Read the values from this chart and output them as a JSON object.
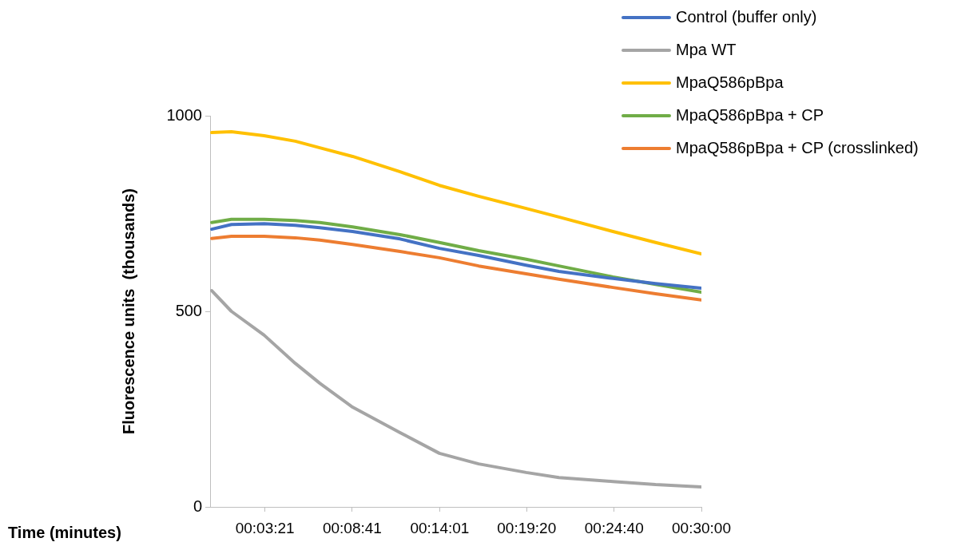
{
  "chart_data": {
    "type": "line",
    "xlabel": "Time (minutes)",
    "ylabel": "Fluorescence units  (thousands)",
    "x": [
      0.1,
      1.3,
      3.3,
      5.2,
      6.7,
      8.7,
      11.6,
      14.0,
      16.4,
      19.3,
      21.3,
      24.6,
      27.2,
      30
    ],
    "xlim": [
      0,
      30
    ],
    "xticks": [
      {
        "value": 3.35,
        "label": "00:03:21"
      },
      {
        "value": 8.68,
        "label": "00:08:41"
      },
      {
        "value": 14.02,
        "label": "00:14:01"
      },
      {
        "value": 19.33,
        "label": "00:19:20"
      },
      {
        "value": 24.67,
        "label": "00:24:40"
      },
      {
        "value": 30,
        "label": "00:30:00"
      }
    ],
    "ylim": [
      0,
      1000
    ],
    "yticks": [
      0,
      500,
      1000
    ],
    "grid": false,
    "legend": "top right",
    "marker": "none",
    "line_style": "solid",
    "series": [
      {
        "name": "Control (buffer only)",
        "color": "#4472c4",
        "values": [
          710,
          722,
          724,
          720,
          714,
          704,
          685,
          661,
          643,
          618,
          602,
          584,
          571,
          559
        ]
      },
      {
        "name": "Mpa WT",
        "color": "#a5a5a5",
        "values": [
          553,
          500,
          439,
          367,
          316,
          255,
          190,
          137,
          110,
          88,
          75,
          65,
          57,
          51
        ]
      },
      {
        "name": "MpaQ586pBpa",
        "color": "#ffc000",
        "values": [
          957,
          959,
          949,
          935,
          918,
          896,
          857,
          822,
          794,
          763,
          741,
          704,
          676,
          647
        ]
      },
      {
        "name": "MpaQ586pBpa + CP",
        "color": "#70ad47",
        "values": [
          727,
          735,
          735,
          732,
          727,
          716,
          696,
          676,
          655,
          633,
          616,
          588,
          569,
          549
        ]
      },
      {
        "name": "MpaQ586pBpa + CP (crosslinked)",
        "color": "#ed7d31",
        "values": [
          686,
          692,
          692,
          688,
          682,
          671,
          653,
          637,
          616,
          596,
          582,
          561,
          545,
          529
        ]
      }
    ]
  }
}
